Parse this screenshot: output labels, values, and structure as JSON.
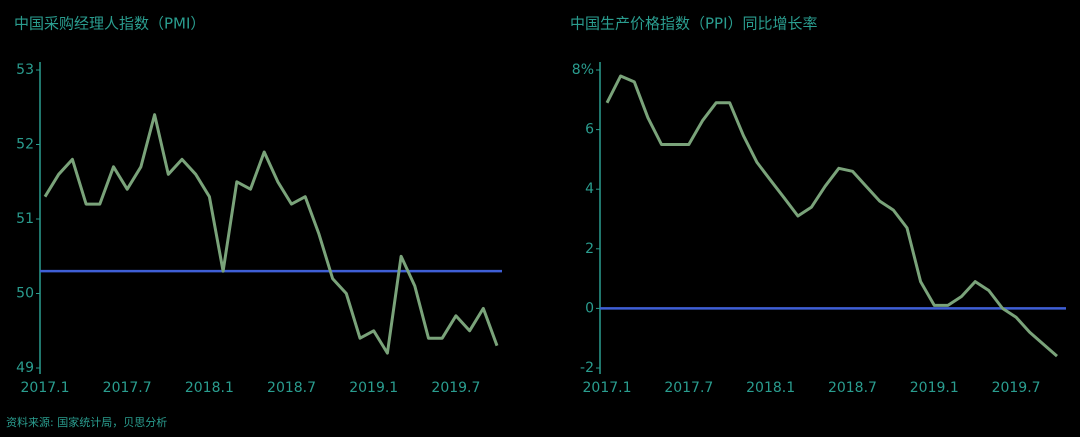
{
  "chart_data": [
    {
      "type": "line",
      "title": "中国采购经理人指数（PMI）",
      "categories": [
        "2017.1",
        null,
        null,
        null,
        null,
        null,
        "2017.7",
        null,
        null,
        null,
        null,
        null,
        "2018.1",
        null,
        null,
        null,
        null,
        null,
        "2018.7",
        null,
        null,
        null,
        null,
        null,
        "2019.1",
        null,
        null,
        null,
        null,
        null,
        "2019.7",
        null,
        null,
        null
      ],
      "values": [
        51.3,
        51.6,
        51.8,
        51.2,
        51.2,
        51.7,
        51.4,
        51.7,
        52.4,
        51.6,
        51.8,
        51.6,
        51.3,
        50.3,
        51.5,
        51.4,
        51.9,
        51.5,
        51.2,
        51.3,
        50.8,
        50.2,
        50.0,
        49.4,
        49.5,
        49.2,
        50.5,
        50.1,
        49.4,
        49.4,
        49.7,
        49.5,
        49.8,
        49.3
      ],
      "color": "#7aa37a",
      "reference_line": 50.3,
      "reference_color": "#3f5fd6",
      "ylim": [
        49,
        53
      ],
      "yticks": [
        49,
        50,
        51,
        52,
        53
      ]
    },
    {
      "type": "line",
      "title": "中国生产价格指数（PPI）同比增长率",
      "categories": [
        "2017.1",
        null,
        null,
        null,
        null,
        null,
        "2017.7",
        null,
        null,
        null,
        null,
        null,
        "2018.1",
        null,
        null,
        null,
        null,
        null,
        "2018.7",
        null,
        null,
        null,
        null,
        null,
        "2019.1",
        null,
        null,
        null,
        null,
        null,
        "2019.7",
        null,
        null,
        null
      ],
      "values": [
        6.9,
        7.8,
        7.6,
        6.4,
        5.5,
        5.5,
        5.5,
        6.3,
        6.9,
        6.9,
        5.8,
        4.9,
        4.3,
        3.7,
        3.1,
        3.4,
        4.1,
        4.7,
        4.6,
        4.1,
        3.6,
        3.3,
        2.7,
        0.9,
        0.1,
        0.1,
        0.4,
        0.9,
        0.6,
        0.0,
        -0.3,
        -0.8,
        -1.2,
        -1.6
      ],
      "color": "#7aa37a",
      "reference_line": 0,
      "reference_color": "#3f5fd6",
      "ylim": [
        -2,
        8
      ],
      "yticks": [
        -2,
        0,
        2,
        4,
        6,
        {
          "value": 8,
          "label": "8%"
        }
      ]
    }
  ],
  "source": "资料来源: 国家统计局，贝思分析"
}
